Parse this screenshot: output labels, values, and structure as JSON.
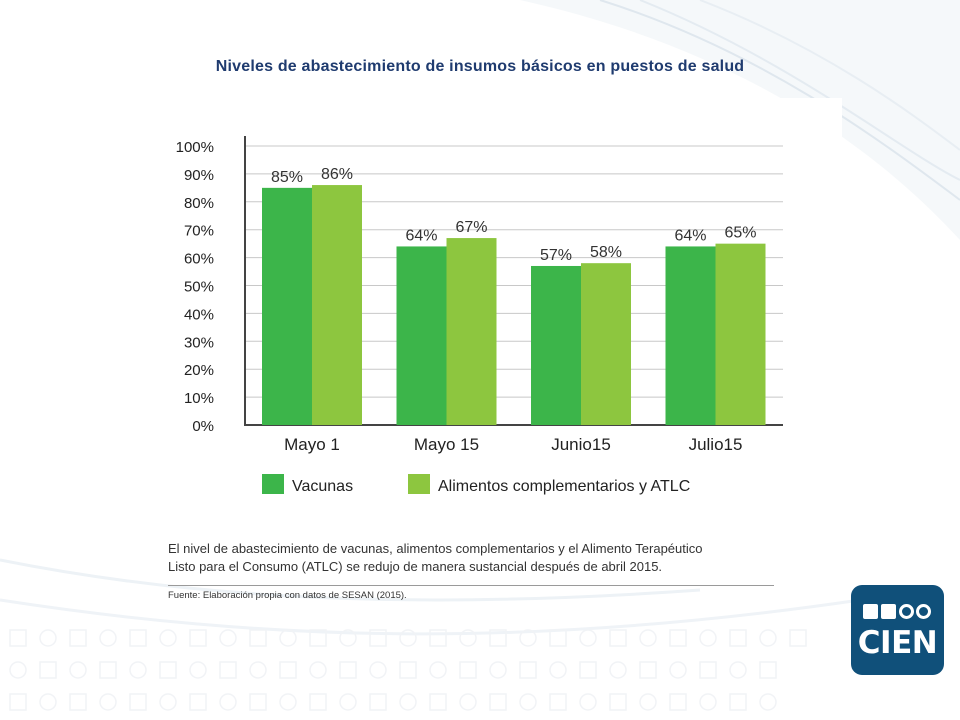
{
  "slide": {
    "title": "Niveles de abastecimiento de insumos básicos en puestos de salud",
    "caption_line1": "El nivel de abastecimiento de vacunas, alimentos complementarios y el Alimento Terapéutico",
    "caption_line2": "Listo para el Consumo (ATLC) se redujo de manera sustancial después de abril 2015.",
    "source": "Fuente: Elaboración propia con datos de SESAN (2015).",
    "logo_text": "CIEN"
  },
  "colors": {
    "vacunas": "#3cb54a",
    "alimentos": "#8dc63f",
    "title": "#1f3b6f",
    "logo": "#10507a"
  },
  "chart_data": {
    "type": "bar",
    "title": "",
    "categories": [
      "Mayo 1",
      "Mayo 15",
      "Junio15",
      "Julio15"
    ],
    "series": [
      {
        "name": "Vacunas",
        "values": [
          85,
          64,
          57,
          64
        ],
        "labels": [
          "85%",
          "64%",
          "57%",
          "64%"
        ]
      },
      {
        "name": "Alimentos complementarios y ATLC",
        "values": [
          86,
          67,
          58,
          65
        ],
        "labels": [
          "86%",
          "67%",
          "58%",
          "65%"
        ]
      }
    ],
    "yticks": [
      "0%",
      "10%",
      "20%",
      "30%",
      "40%",
      "50%",
      "60%",
      "70%",
      "80%",
      "90%",
      "100%"
    ],
    "ylim": [
      0,
      100
    ],
    "xlabel": "",
    "ylabel": "",
    "grid": true,
    "legend": "bottom"
  }
}
